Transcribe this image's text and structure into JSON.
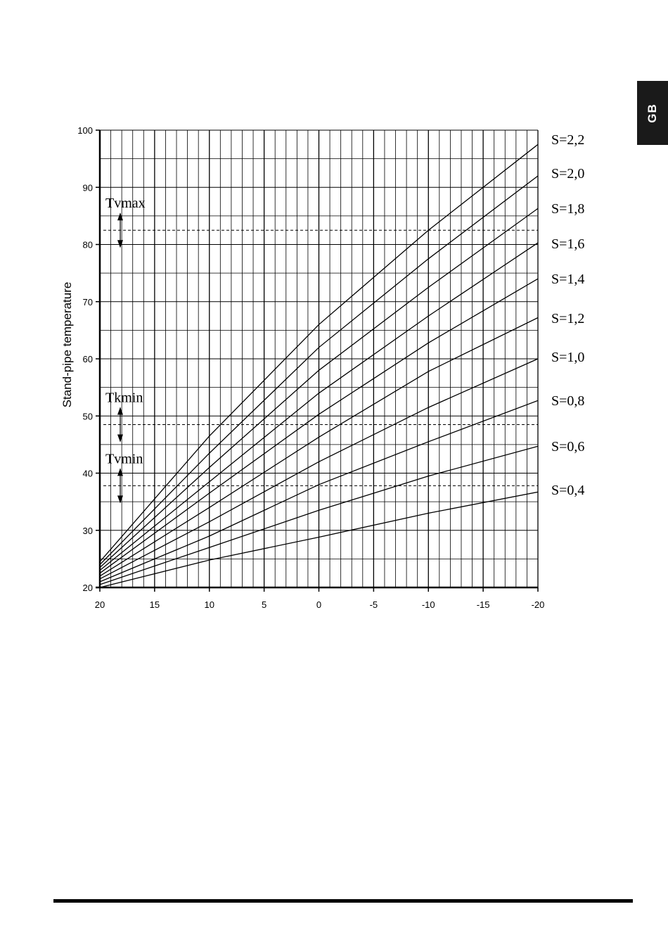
{
  "page": {
    "language_tab": "GB"
  },
  "chart_data": {
    "type": "line",
    "title": "",
    "xlabel": "",
    "ylabel": "Stand-pipe temperature",
    "xlim": [
      20,
      -20
    ],
    "ylim": [
      20,
      100
    ],
    "x_reversed": true,
    "grid": true,
    "x_ticks": [
      20,
      15,
      10,
      5,
      0,
      -5,
      -10,
      -15,
      -20
    ],
    "y_ticks": [
      20,
      30,
      40,
      50,
      60,
      70,
      80,
      90,
      100
    ],
    "x_tick_labels": [
      "20",
      "15",
      "10",
      "5",
      "0",
      "-5",
      "-10",
      "-15",
      "-20"
    ],
    "y_tick_labels": [
      "20",
      "30",
      "40",
      "50",
      "60",
      "70",
      "80",
      "90",
      "100"
    ],
    "x": [
      20,
      10,
      0,
      -10,
      -20
    ],
    "series": [
      {
        "name": "S=2,2",
        "values": [
          24.5,
          46.5,
          66,
          82.5,
          97.5
        ]
      },
      {
        "name": "S=2,0",
        "values": [
          24,
          43.5,
          62,
          77.5,
          92
        ]
      },
      {
        "name": "S=1,8",
        "values": [
          23.5,
          41,
          58,
          72.5,
          86.3
        ]
      },
      {
        "name": "S=1,6",
        "values": [
          23,
          38.5,
          54,
          67.5,
          80.3
        ]
      },
      {
        "name": "S=1,4",
        "values": [
          22.5,
          36.5,
          50.3,
          62.8,
          74
        ]
      },
      {
        "name": "S=1,2",
        "values": [
          22,
          34,
          46.3,
          57.8,
          67.2
        ]
      },
      {
        "name": "S=1,0",
        "values": [
          21.5,
          31.5,
          42,
          51.5,
          60
        ]
      },
      {
        "name": "S=0,8",
        "values": [
          21,
          29,
          38,
          45.5,
          52.7
        ]
      },
      {
        "name": "S=0,6",
        "values": [
          20.5,
          27,
          33.5,
          39.5,
          44.7
        ]
      },
      {
        "name": "S=0,4",
        "values": [
          20,
          24.8,
          28.8,
          33,
          36.7
        ]
      }
    ],
    "reference_lines": [
      {
        "name": "Tvmax",
        "y": 82.5
      },
      {
        "name": "Tkmin",
        "y": 48.5
      },
      {
        "name": "Tvmin",
        "y": 37.8
      }
    ]
  }
}
